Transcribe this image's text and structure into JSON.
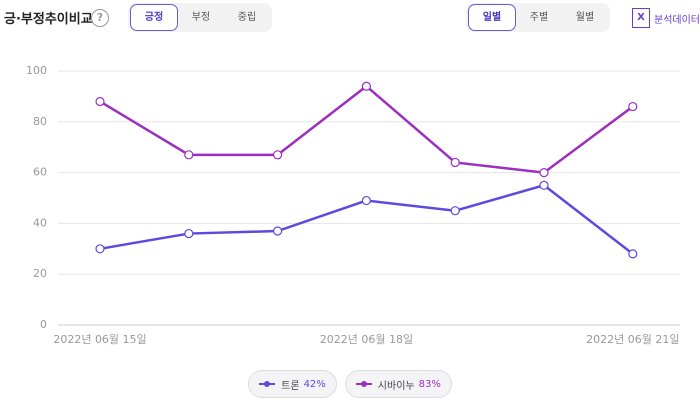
{
  "header": {
    "title": "긍·부정추이비교",
    "help": "?",
    "sentiment_tabs": [
      "긍정",
      "부정",
      "중립"
    ],
    "period_tabs": [
      "일별",
      "주별",
      "월별"
    ],
    "export": "분석데이터"
  },
  "chart_data": {
    "type": "line",
    "categories": [
      "2022년 06월 15일",
      null,
      null,
      "2022년 06월 18일",
      null,
      null,
      "2022년 06월 21일"
    ],
    "series": [
      {
        "name": "트론",
        "share": "42%",
        "color": "#5b4be0",
        "values": [
          30,
          36,
          37,
          49,
          45,
          55,
          28
        ]
      },
      {
        "name": "시바이누",
        "share": "83%",
        "color": "#9b2fc0",
        "values": [
          88,
          67,
          67,
          94,
          64,
          60,
          86
        ]
      }
    ],
    "ylim": [
      0,
      100
    ],
    "yticks": [
      0,
      20,
      40,
      60,
      80,
      100
    ],
    "grid": true
  }
}
